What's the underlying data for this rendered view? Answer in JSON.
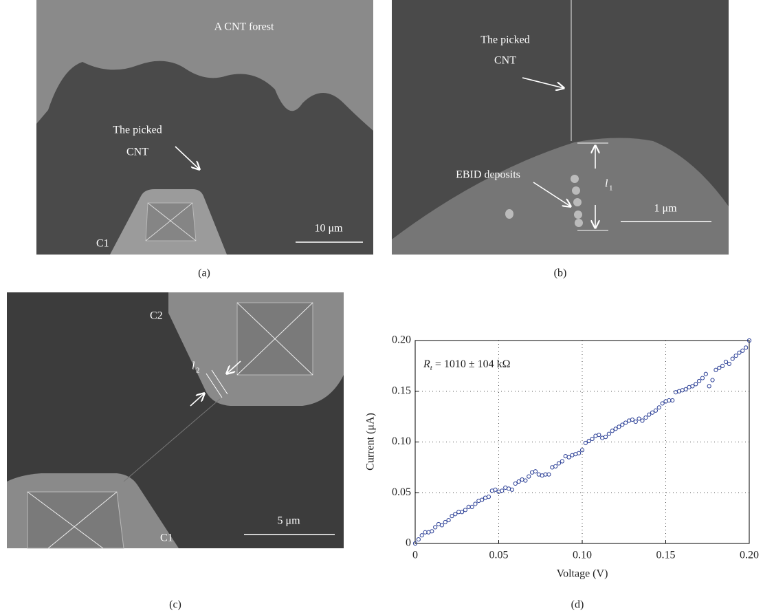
{
  "panels": {
    "a": {
      "label": "(a)",
      "forest": "A CNT forest",
      "picked_line1": "The picked",
      "picked_line2": "CNT",
      "scale": "10 μm",
      "tip": "C1"
    },
    "b": {
      "label": "(b)",
      "picked_line1": "The picked",
      "picked_line2": "CNT",
      "deposits": "EBID deposits",
      "length_symbol": "l",
      "length_sub": "1",
      "scale": "1 μm"
    },
    "c": {
      "label": "(c)",
      "tip_top": "C2",
      "length_symbol": "l",
      "length_sub": "2",
      "scale": "5 μm",
      "tip_bottom": "C1"
    },
    "d": {
      "label": "(d)"
    }
  },
  "chart_data": {
    "type": "scatter",
    "xlabel": "Voltage (V)",
    "ylabel": "Current (μA)",
    "annotation": {
      "symbol": "R",
      "subscript": "t",
      "text": " = 1010 ± 104 kΩ"
    },
    "color": "#2b3f96",
    "grid": true,
    "xlim": [
      0,
      0.2
    ],
    "ylim": [
      0,
      0.2
    ],
    "xticks": [
      0,
      0.05,
      {
        "value": 0.1,
        "label": "0.10"
      },
      0.15,
      {
        "value": 0.2,
        "label": "0.20"
      }
    ],
    "yticks": [
      0,
      0.05,
      {
        "value": 0.1,
        "label": "0.10"
      },
      0.15,
      {
        "value": 0.2,
        "label": "0.20"
      }
    ],
    "x": [
      0,
      0.002,
      0.004,
      0.006,
      0.008,
      0.01,
      0.012,
      0.014,
      0.016,
      0.018,
      0.02,
      0.022,
      0.024,
      0.026,
      0.028,
      0.03,
      0.032,
      0.034,
      0.036,
      0.038,
      0.04,
      0.042,
      0.044,
      0.046,
      0.048,
      0.05,
      0.052,
      0.054,
      0.056,
      0.058,
      0.06,
      0.062,
      0.064,
      0.066,
      0.068,
      0.07,
      0.072,
      0.074,
      0.076,
      0.078,
      0.08,
      0.082,
      0.084,
      0.086,
      0.088,
      0.09,
      0.092,
      0.094,
      0.096,
      0.098,
      0.1,
      0.102,
      0.104,
      0.106,
      0.108,
      0.11,
      0.112,
      0.114,
      0.116,
      0.118,
      0.12,
      0.122,
      0.124,
      0.126,
      0.128,
      0.13,
      0.132,
      0.134,
      0.136,
      0.138,
      0.14,
      0.142,
      0.144,
      0.146,
      0.148,
      0.15,
      0.152,
      0.154,
      0.156,
      0.158,
      0.16,
      0.162,
      0.164,
      0.166,
      0.168,
      0.17,
      0.172,
      0.174,
      0.176,
      0.178,
      0.18,
      0.182,
      0.184,
      0.186,
      0.188,
      0.19,
      0.192,
      0.194,
      0.196,
      0.198,
      0.2
    ],
    "values": [
      0,
      0.004,
      0.008,
      0.011,
      0.011,
      0.012,
      0.016,
      0.019,
      0.018,
      0.021,
      0.023,
      0.027,
      0.029,
      0.031,
      0.031,
      0.033,
      0.036,
      0.036,
      0.039,
      0.042,
      0.043,
      0.045,
      0.046,
      0.052,
      0.053,
      0.051,
      0.052,
      0.055,
      0.054,
      0.053,
      0.059,
      0.061,
      0.063,
      0.062,
      0.066,
      0.07,
      0.071,
      0.068,
      0.067,
      0.068,
      0.068,
      0.075,
      0.076,
      0.079,
      0.081,
      0.086,
      0.085,
      0.087,
      0.088,
      0.089,
      0.092,
      0.099,
      0.101,
      0.103,
      0.106,
      0.107,
      0.104,
      0.105,
      0.108,
      0.111,
      0.113,
      0.115,
      0.117,
      0.119,
      0.121,
      0.122,
      0.12,
      0.123,
      0.121,
      0.124,
      0.127,
      0.129,
      0.131,
      0.134,
      0.138,
      0.14,
      0.141,
      0.141,
      0.149,
      0.15,
      0.151,
      0.152,
      0.154,
      0.155,
      0.157,
      0.16,
      0.163,
      0.167,
      0.155,
      0.161,
      0.171,
      0.173,
      0.175,
      0.179,
      0.177,
      0.182,
      0.185,
      0.188,
      0.19,
      0.193,
      0.2
    ]
  }
}
